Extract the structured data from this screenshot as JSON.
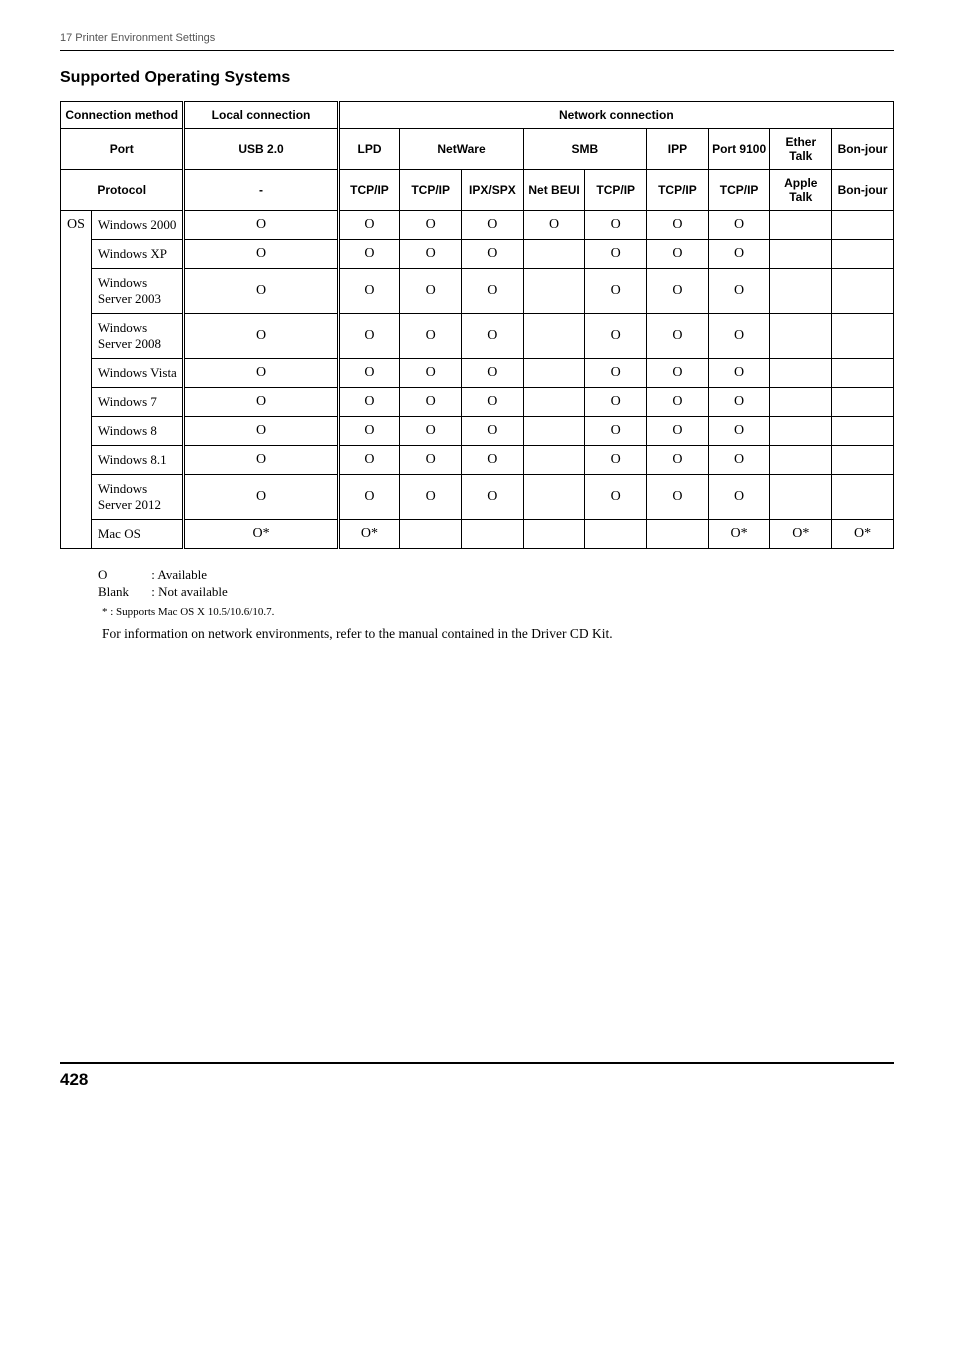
{
  "header": {
    "chapter": "17 Printer Environment Settings"
  },
  "section": {
    "title": "Supported Operating Systems"
  },
  "table": {
    "head": {
      "conn_method": "Connection method",
      "local_conn": "Local connection",
      "net_conn": "Network connection",
      "port": "Port",
      "usb": "USB 2.0",
      "lpd": "LPD",
      "netware": "NetWare",
      "smb": "SMB",
      "ipp": "IPP",
      "port9100": "Port 9100",
      "ethertalk": "Ether Talk",
      "bonjour": "Bon-jour",
      "protocol": "Protocol",
      "dash": "-",
      "tcpip": "TCP/IP",
      "ipxspx": "IPX/SPX",
      "netbeui": "Net BEUI",
      "appletalk": "Apple Talk"
    },
    "os_label": "OS",
    "rows": [
      {
        "name": "Windows 2000",
        "v": [
          "O",
          "O",
          "O",
          "O",
          "O",
          "O",
          "O",
          "O",
          "",
          ""
        ]
      },
      {
        "name": "Windows XP",
        "v": [
          "O",
          "O",
          "O",
          "O",
          "",
          "O",
          "O",
          "O",
          "",
          ""
        ]
      },
      {
        "name": "Windows Server 2003",
        "v": [
          "O",
          "O",
          "O",
          "O",
          "",
          "O",
          "O",
          "O",
          "",
          ""
        ]
      },
      {
        "name": "Windows Server 2008",
        "v": [
          "O",
          "O",
          "O",
          "O",
          "",
          "O",
          "O",
          "O",
          "",
          ""
        ]
      },
      {
        "name": "Windows Vista",
        "v": [
          "O",
          "O",
          "O",
          "O",
          "",
          "O",
          "O",
          "O",
          "",
          ""
        ]
      },
      {
        "name": "Windows 7",
        "v": [
          "O",
          "O",
          "O",
          "O",
          "",
          "O",
          "O",
          "O",
          "",
          ""
        ]
      },
      {
        "name": "Windows 8",
        "v": [
          "O",
          "O",
          "O",
          "O",
          "",
          "O",
          "O",
          "O",
          "",
          ""
        ]
      },
      {
        "name": "Windows 8.1",
        "v": [
          "O",
          "O",
          "O",
          "O",
          "",
          "O",
          "O",
          "O",
          "",
          ""
        ]
      },
      {
        "name": "Windows Server 2012",
        "v": [
          "O",
          "O",
          "O",
          "O",
          "",
          "O",
          "O",
          "O",
          "",
          ""
        ]
      },
      {
        "name": "Mac OS",
        "v": [
          "O*",
          "O*",
          "",
          "",
          "",
          "",
          "",
          "O*",
          "O*",
          "O*"
        ]
      }
    ]
  },
  "legend": {
    "o": "O",
    "o_desc": ":  Available",
    "blank": "Blank",
    "blank_desc": ":  Not available"
  },
  "footnote": "* : Supports Mac OS X 10.5/10.6/10.7.",
  "info": "For information on network environments, refer to the manual contained in the Driver CD Kit.",
  "pagenum": "428"
}
